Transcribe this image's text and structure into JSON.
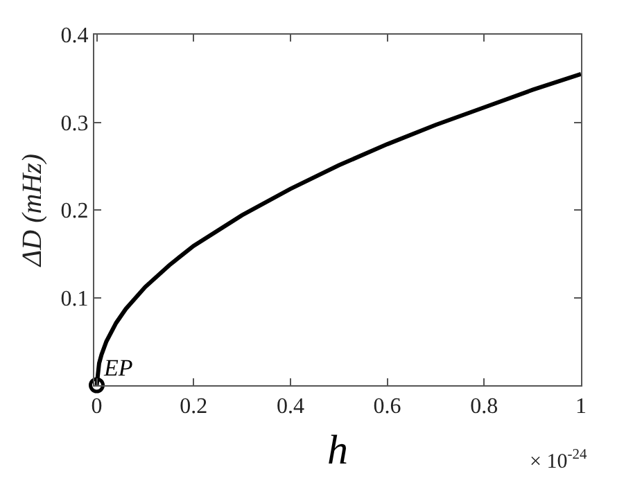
{
  "chart_data": {
    "type": "line",
    "xlabel": "h",
    "ylabel": "ΔD (mHz)",
    "xlim": [
      -0.005,
      1
    ],
    "xticks": [
      0,
      0.2,
      0.4,
      0.6,
      0.8,
      1
    ],
    "ylim": [
      0,
      0.4
    ],
    "yticks": [
      0.1,
      0.2,
      0.3,
      0.4
    ],
    "line_style": "solid",
    "series": [
      {
        "marker": "none",
        "color": "#000000",
        "x": [
          0,
          0.005,
          0.01,
          0.02,
          0.04,
          0.06,
          0.1,
          0.15,
          0.2,
          0.3,
          0.4,
          0.5,
          0.6,
          0.7,
          0.8,
          0.9,
          1
        ],
        "values": [
          0,
          0.025,
          0.035,
          0.05,
          0.071,
          0.087,
          0.112,
          0.137,
          0.159,
          0.194,
          0.224,
          0.251,
          0.275,
          0.297,
          0.317,
          0.337,
          0.355
        ]
      },
      {
        "type": "scatter",
        "marker": "circle",
        "color": "#000000",
        "x": [
          0
        ],
        "values": [
          0
        ]
      }
    ],
    "annotations": [
      {
        "text": "EP",
        "x": 0,
        "y": 0
      },
      "× 10$^{-24}$"
    ]
  }
}
